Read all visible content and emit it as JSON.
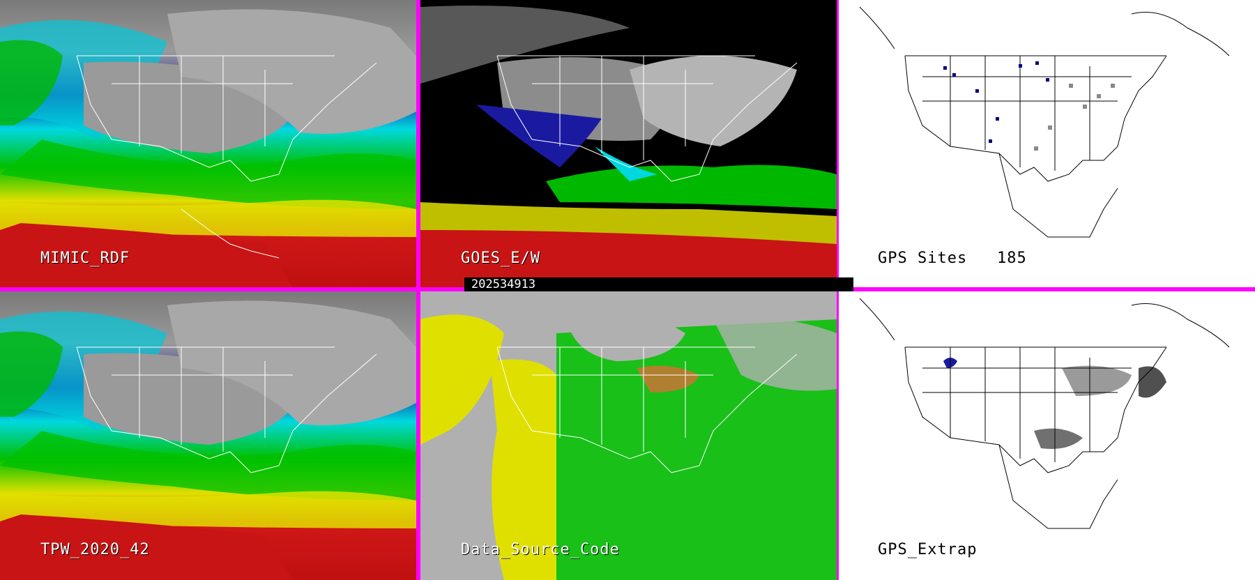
{
  "panels": [
    {
      "label": "MIMIC_RDF"
    },
    {
      "label": "GOES_E/W"
    },
    {
      "label": "GPS Sites",
      "count": "185"
    },
    {
      "label": "TPW_2020_42"
    },
    {
      "label": "Data_Source_Code"
    },
    {
      "label": "GPS_Extrap"
    }
  ],
  "timestamp": "202534913",
  "colors": {
    "divider": "#ff00ff",
    "tpw_scale": [
      "#808080",
      "#1a1aa0",
      "#00e0e0",
      "#00c800",
      "#e6e600",
      "#c81414"
    ],
    "data_source": [
      "#b0b0b0",
      "#e0e000",
      "#18c018",
      "#b08030"
    ]
  }
}
